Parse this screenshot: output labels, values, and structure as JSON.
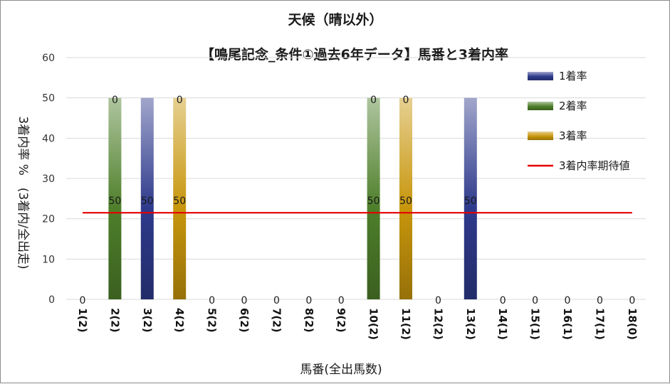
{
  "chart_data": {
    "type": "bar",
    "title": "天候（晴以外）",
    "subtitle": "【鳴尾記念_条件①過去6年データ】馬番と3着内率",
    "xlabel": "馬番(全出馬数)",
    "ylabel": "3着内率 %　(3着内/全出走)",
    "ylim": [
      0,
      60
    ],
    "yticks": [
      0,
      10,
      20,
      30,
      40,
      50,
      60
    ],
    "categories": [
      "1(2)",
      "2(2)",
      "3(2)",
      "4(2)",
      "5(2)",
      "6(2)",
      "7(2)",
      "8(2)",
      "9(2)",
      "10(2)",
      "11(2)",
      "12(2)",
      "13(2)",
      "14(1)",
      "15(1)",
      "16(1)",
      "17(1)",
      "18(0)"
    ],
    "series": [
      {
        "name": "1着率",
        "color": "#2e3a8c",
        "values": [
          0,
          0,
          50,
          0,
          0,
          0,
          0,
          0,
          0,
          0,
          0,
          0,
          50,
          0,
          0,
          0,
          0,
          0
        ]
      },
      {
        "name": "2着率",
        "color": "#4e7f2a",
        "values": [
          0,
          50,
          0,
          0,
          0,
          0,
          0,
          0,
          0,
          50,
          0,
          0,
          0,
          0,
          0,
          0,
          0,
          0
        ]
      },
      {
        "name": "3着率",
        "color": "#c8960c",
        "values": [
          0,
          0,
          0,
          50,
          0,
          0,
          0,
          0,
          0,
          0,
          50,
          0,
          0,
          0,
          0,
          0,
          0,
          0
        ]
      },
      {
        "name": "3着内率期待値",
        "type": "line",
        "color": "#e60000",
        "values": [
          21.5,
          21.5,
          21.5,
          21.5,
          21.5,
          21.5,
          21.5,
          21.5,
          21.5,
          21.5,
          21.5,
          21.5,
          21.5,
          21.5,
          21.5,
          21.5,
          21.5,
          21.5
        ]
      }
    ],
    "bar_labels_lower": [
      "0",
      "50",
      "50",
      "50",
      "0",
      "0",
      "0",
      "0",
      "0",
      "50",
      "50",
      "0",
      "50",
      "0",
      "0",
      "0",
      "0",
      "0"
    ],
    "bar_labels_upper": [
      "",
      "0",
      "",
      "0",
      "",
      "",
      "",
      "",
      "",
      "0",
      "0",
      "",
      "",
      "",
      "",
      "",
      "",
      ""
    ],
    "grid": true,
    "legend_position": "right"
  }
}
